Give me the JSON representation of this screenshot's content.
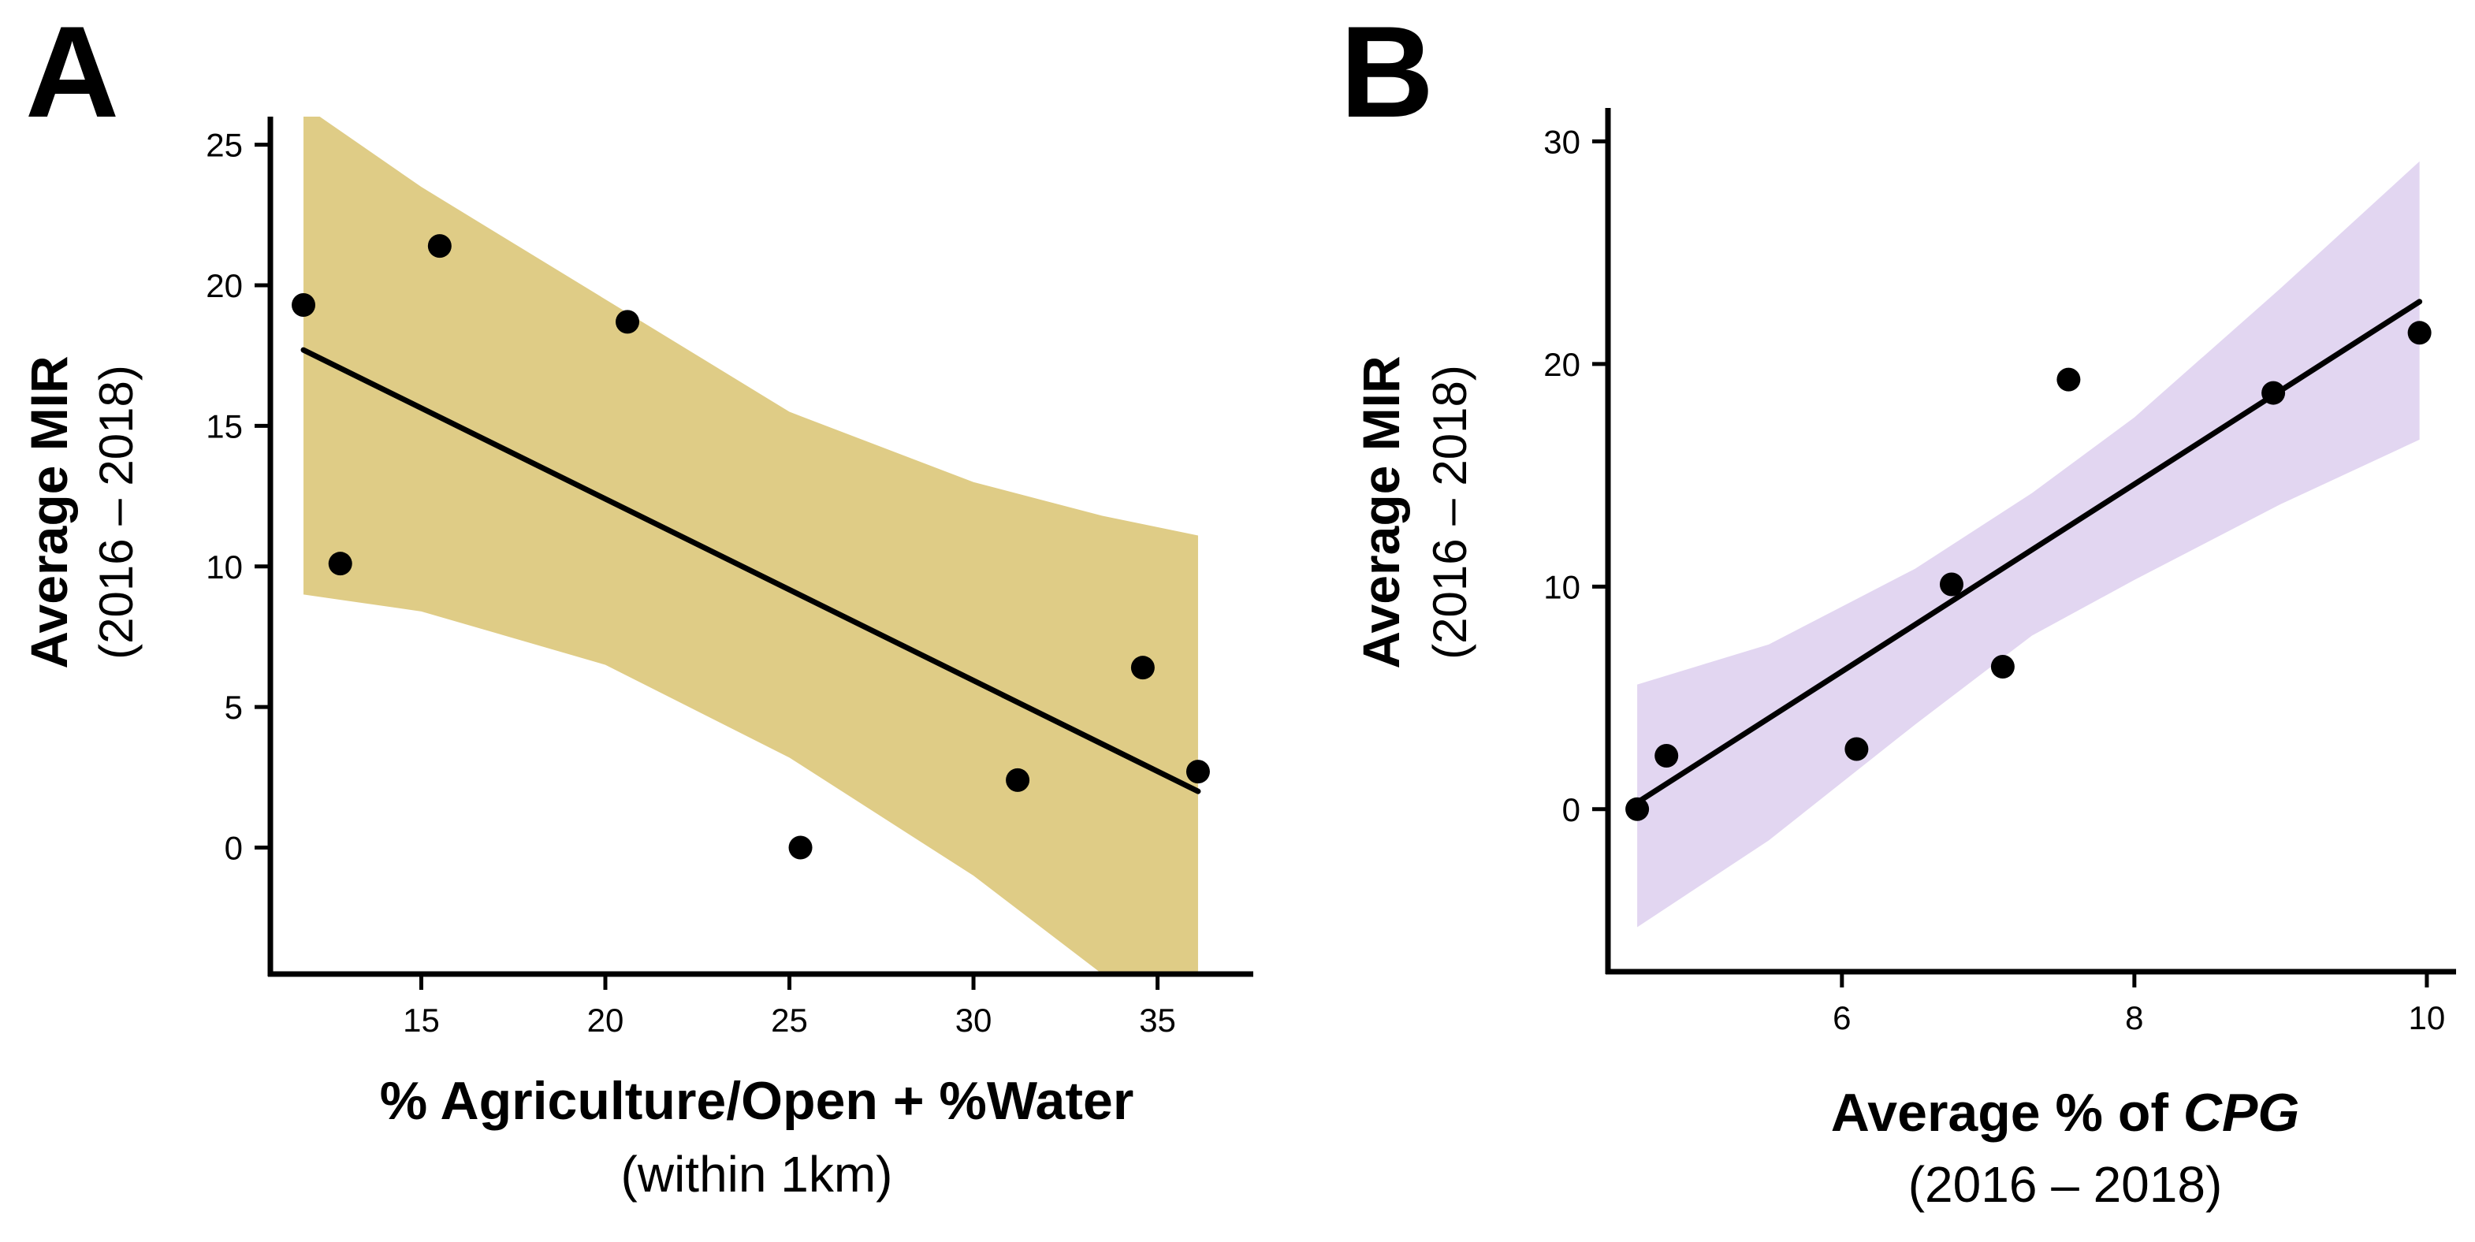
{
  "chart_data": [
    {
      "panel": "A",
      "type": "scatter",
      "xlabel": "% Agriculture/Open + %Water",
      "xlabel_sub": "(within 1km)",
      "ylabel": "Average MIR",
      "ylabel_sub": "(2016 – 2018)",
      "x_ticks": [
        15,
        20,
        25,
        30,
        35
      ],
      "y_ticks": [
        0,
        5,
        10,
        15,
        20,
        25
      ],
      "xlim": [
        10.9,
        37.6
      ],
      "ylim": [
        -4.5,
        26.0
      ],
      "band_color": "#dfcc86",
      "points": [
        {
          "x": 11.8,
          "y": 19.3
        },
        {
          "x": 12.8,
          "y": 10.1
        },
        {
          "x": 15.5,
          "y": 21.4
        },
        {
          "x": 20.6,
          "y": 18.7
        },
        {
          "x": 25.3,
          "y": 0.0
        },
        {
          "x": 31.2,
          "y": 2.4
        },
        {
          "x": 34.6,
          "y": 6.4
        },
        {
          "x": 36.1,
          "y": 2.7
        }
      ],
      "fit": {
        "x": [
          11.8,
          36.1
        ],
        "y": [
          17.7,
          2.0
        ]
      },
      "ci_band": {
        "x": [
          11.8,
          15.0,
          20.0,
          25.0,
          30.0,
          33.5,
          36.1
        ],
        "lower": [
          9.0,
          8.4,
          6.5,
          3.2,
          -1.0,
          -4.5,
          -4.5
        ],
        "upper": [
          26.4,
          23.5,
          19.5,
          15.5,
          13.0,
          11.8,
          11.1
        ]
      }
    },
    {
      "panel": "B",
      "type": "scatter",
      "xlabel": "Average % of",
      "xlabel_italic": "CPG",
      "xlabel_sub": "(2016 – 2018)",
      "ylabel": "Average MIR",
      "ylabel_sub": "(2016 – 2018)",
      "x_ticks": [
        6,
        8,
        10
      ],
      "y_ticks": [
        0,
        10,
        20,
        30
      ],
      "xlim": [
        4.4,
        10.2
      ],
      "ylim": [
        -7.3,
        31.5
      ],
      "band_color": "#e2d6f1",
      "points": [
        {
          "x": 4.6,
          "y": 0.0
        },
        {
          "x": 4.8,
          "y": 2.4
        },
        {
          "x": 6.1,
          "y": 2.7
        },
        {
          "x": 6.75,
          "y": 10.1
        },
        {
          "x": 7.1,
          "y": 6.4
        },
        {
          "x": 7.55,
          "y": 19.3
        },
        {
          "x": 8.95,
          "y": 18.7
        },
        {
          "x": 9.95,
          "y": 21.4
        }
      ],
      "fit": {
        "x": [
          4.6,
          9.95
        ],
        "y": [
          0.3,
          22.8
        ]
      },
      "ci_band": {
        "x": [
          4.6,
          5.5,
          6.5,
          7.3,
          8.0,
          9.0,
          9.95
        ],
        "lower": [
          -5.3,
          -1.4,
          3.8,
          7.8,
          10.3,
          13.7,
          16.6
        ],
        "upper": [
          5.6,
          7.4,
          10.8,
          14.2,
          17.6,
          23.4,
          29.1
        ]
      }
    }
  ]
}
